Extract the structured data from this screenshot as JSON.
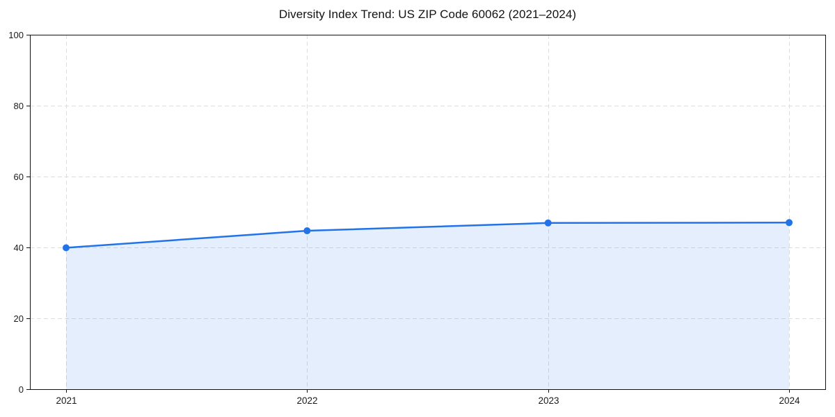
{
  "page": {
    "background": "#ffffff"
  },
  "chart_data": {
    "type": "line",
    "title": "Diversity Index Trend: US ZIP Code 60062 (2021–2024)",
    "x": [
      2021,
      2022,
      2023,
      2024
    ],
    "xticklabels": [
      "2021",
      "2022",
      "2023",
      "2024"
    ],
    "series": [
      {
        "name": "Diversity Index",
        "values": [
          39.9,
          44.7,
          46.9,
          47.0
        ]
      }
    ],
    "xlabel": "",
    "ylabel": "",
    "ylim": [
      0,
      100
    ],
    "yticks": [
      0,
      20,
      40,
      60,
      80,
      100
    ],
    "grid": true,
    "grid_style": "dashed",
    "legend_position": "none",
    "marker": "circle",
    "area_fill": true,
    "colors": {
      "line": "#2272e8",
      "marker": "#2272e8",
      "area_fill": "rgba(34,114,232,0.12)",
      "grid": "#dddddd",
      "axis": "#111111",
      "tick_text": "#1a1a1a",
      "title_text": "#111111"
    }
  }
}
